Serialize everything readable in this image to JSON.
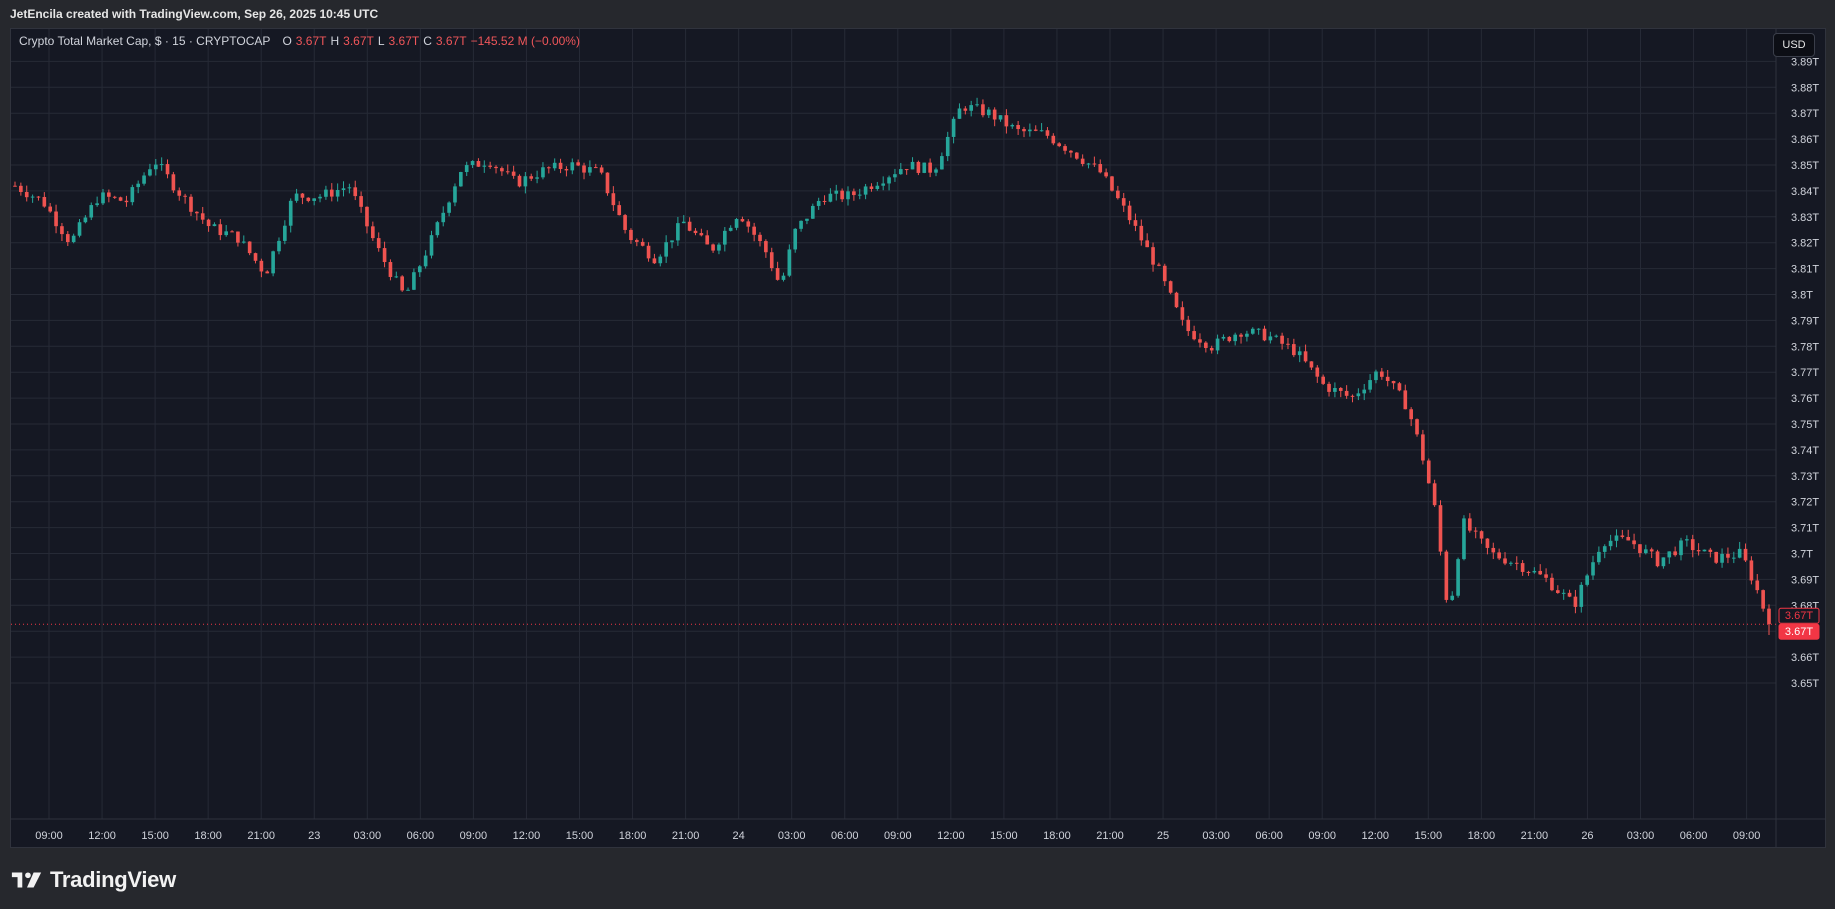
{
  "header": {
    "attribution": "JetEncila created with TradingView.com, Sep 26, 2025 10:45 UTC"
  },
  "legend": {
    "symbol": "Crypto Total Market Cap, $ · 15 · CRYPTOCAP",
    "o_label": "O",
    "o_value": "3.67T",
    "h_label": "H",
    "h_value": "3.67T",
    "l_label": "L",
    "l_value": "3.67T",
    "c_label": "C",
    "c_value": "3.67T",
    "change": "−145.52 M (−0.00%)"
  },
  "currency_button": "USD",
  "footer": {
    "brand": "TradingView"
  },
  "colors": {
    "up": "#26a69a",
    "down": "#ef5350",
    "background": "#151823",
    "grid": "#262a36",
    "axis_text": "#d1d4dc",
    "price_label": "#f23645"
  },
  "chart_data": {
    "type": "candlestick",
    "title": "Crypto Total Market Cap, $ · 15 · CRYPTOCAP",
    "interval": "15",
    "unit": "T",
    "ylim": [
      3.64,
      3.895
    ],
    "y_ticks": [
      "3.89T",
      "3.88T",
      "3.87T",
      "3.86T",
      "3.85T",
      "3.84T",
      "3.83T",
      "3.82T",
      "3.81T",
      "3.8T",
      "3.79T",
      "3.78T",
      "3.77T",
      "3.76T",
      "3.75T",
      "3.74T",
      "3.73T",
      "3.72T",
      "3.71T",
      "3.7T",
      "3.69T",
      "3.68T",
      "3.67T",
      "3.66T",
      "3.65T"
    ],
    "y_tick_values": [
      3.89,
      3.88,
      3.87,
      3.86,
      3.85,
      3.84,
      3.83,
      3.82,
      3.81,
      3.8,
      3.79,
      3.78,
      3.77,
      3.76,
      3.75,
      3.74,
      3.73,
      3.72,
      3.71,
      3.7,
      3.69,
      3.68,
      3.67,
      3.66,
      3.65
    ],
    "x_ticks": [
      "09:00",
      "12:00",
      "15:00",
      "18:00",
      "21:00",
      "23",
      "03:00",
      "06:00",
      "09:00",
      "12:00",
      "15:00",
      "18:00",
      "21:00",
      "24",
      "03:00",
      "06:00",
      "09:00",
      "12:00",
      "15:00",
      "18:00",
      "21:00",
      "25",
      "03:00",
      "06:00",
      "09:00",
      "12:00",
      "15:00",
      "18:00",
      "21:00",
      "26",
      "03:00",
      "06:00",
      "09:00"
    ],
    "current_price_labels": [
      "3.67T",
      "3.67T"
    ],
    "current_price": 3.6727,
    "grid": true,
    "price_path_anchors": [
      {
        "t": 0,
        "p": 3.842
      },
      {
        "t": 2,
        "p": 3.836
      },
      {
        "t": 4,
        "p": 3.82
      },
      {
        "t": 6,
        "p": 3.838
      },
      {
        "t": 8,
        "p": 3.836
      },
      {
        "t": 10,
        "p": 3.852
      },
      {
        "t": 12,
        "p": 3.838
      },
      {
        "t": 14,
        "p": 3.826
      },
      {
        "t": 16,
        "p": 3.822
      },
      {
        "t": 18,
        "p": 3.808
      },
      {
        "t": 20,
        "p": 3.838
      },
      {
        "t": 22,
        "p": 3.838
      },
      {
        "t": 24,
        "p": 3.842
      },
      {
        "t": 26,
        "p": 3.818
      },
      {
        "t": 28,
        "p": 3.799
      },
      {
        "t": 30,
        "p": 3.822
      },
      {
        "t": 32,
        "p": 3.848
      },
      {
        "t": 34,
        "p": 3.852
      },
      {
        "t": 36,
        "p": 3.843
      },
      {
        "t": 38,
        "p": 3.848
      },
      {
        "t": 40,
        "p": 3.85
      },
      {
        "t": 42,
        "p": 3.847
      },
      {
        "t": 44,
        "p": 3.823
      },
      {
        "t": 46,
        "p": 3.814
      },
      {
        "t": 48,
        "p": 3.828
      },
      {
        "t": 50,
        "p": 3.817
      },
      {
        "t": 52,
        "p": 3.832
      },
      {
        "t": 54,
        "p": 3.816
      },
      {
        "t": 55,
        "p": 3.803
      },
      {
        "t": 56,
        "p": 3.824
      },
      {
        "t": 58,
        "p": 3.838
      },
      {
        "t": 60,
        "p": 3.838
      },
      {
        "t": 62,
        "p": 3.844
      },
      {
        "t": 64,
        "p": 3.85
      },
      {
        "t": 66,
        "p": 3.848
      },
      {
        "t": 68,
        "p": 3.873
      },
      {
        "t": 70,
        "p": 3.87
      },
      {
        "t": 72,
        "p": 3.863
      },
      {
        "t": 74,
        "p": 3.862
      },
      {
        "t": 76,
        "p": 3.855
      },
      {
        "t": 78,
        "p": 3.847
      },
      {
        "t": 80,
        "p": 3.83
      },
      {
        "t": 82,
        "p": 3.811
      },
      {
        "t": 84,
        "p": 3.787
      },
      {
        "t": 86,
        "p": 3.78
      },
      {
        "t": 88,
        "p": 3.786
      },
      {
        "t": 90,
        "p": 3.784
      },
      {
        "t": 92,
        "p": 3.778
      },
      {
        "t": 94,
        "p": 3.765
      },
      {
        "t": 96,
        "p": 3.76
      },
      {
        "t": 98,
        "p": 3.771
      },
      {
        "t": 100,
        "p": 3.757
      },
      {
        "t": 101,
        "p": 3.74
      },
      {
        "t": 102,
        "p": 3.717
      },
      {
        "t": 103,
        "p": 3.676
      },
      {
        "t": 104,
        "p": 3.712
      },
      {
        "t": 106,
        "p": 3.7
      },
      {
        "t": 108,
        "p": 3.696
      },
      {
        "t": 110,
        "p": 3.69
      },
      {
        "t": 112,
        "p": 3.68
      },
      {
        "t": 114,
        "p": 3.705
      },
      {
        "t": 116,
        "p": 3.705
      },
      {
        "t": 118,
        "p": 3.697
      },
      {
        "t": 120,
        "p": 3.704
      },
      {
        "t": 122,
        "p": 3.698
      },
      {
        "t": 124,
        "p": 3.7
      },
      {
        "t": 125,
        "p": 3.688
      },
      {
        "t": 126,
        "p": 3.673
      }
    ]
  }
}
